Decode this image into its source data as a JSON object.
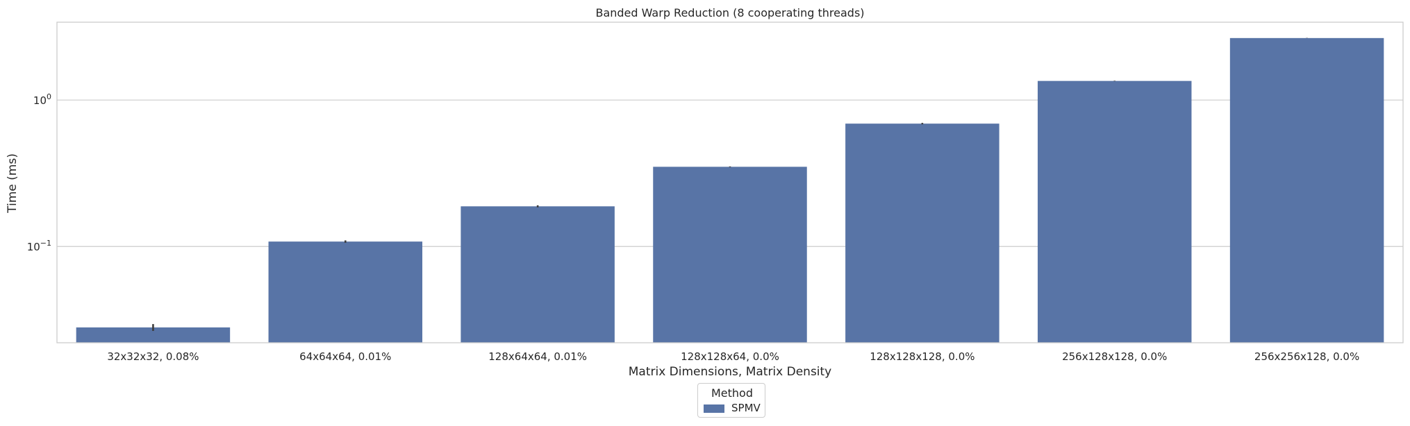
{
  "chart_data": {
    "type": "bar",
    "title": "Banded Warp Reduction (8 cooperating threads)",
    "xlabel": "Matrix Dimensions, Matrix Density",
    "ylabel": "Time (ms)",
    "yscale": "log",
    "ylim": [
      0.022,
      3.4
    ],
    "yticks": [
      {
        "value": 1,
        "base": "10",
        "exp": "0"
      },
      {
        "value": 0.1,
        "base": "10",
        "exp": "−1"
      }
    ],
    "grid": true,
    "categories": [
      "32x32x32, 0.08%",
      "64x64x64, 0.01%",
      "128x64x64, 0.01%",
      "128x128x64, 0.0%",
      "128x128x128, 0.0%",
      "256x128x128, 0.0%",
      "256x256x128, 0.0%"
    ],
    "series": [
      {
        "name": "SPMV",
        "color": "#5874a6",
        "values": [
          0.028,
          0.108,
          0.188,
          0.35,
          0.69,
          1.35,
          2.65
        ],
        "error": [
          0.0015,
          0.002,
          0.003,
          0.002,
          0.008,
          0.005,
          0.005
        ]
      }
    ],
    "legend": {
      "title": "Method",
      "position": "bottom-center"
    }
  }
}
